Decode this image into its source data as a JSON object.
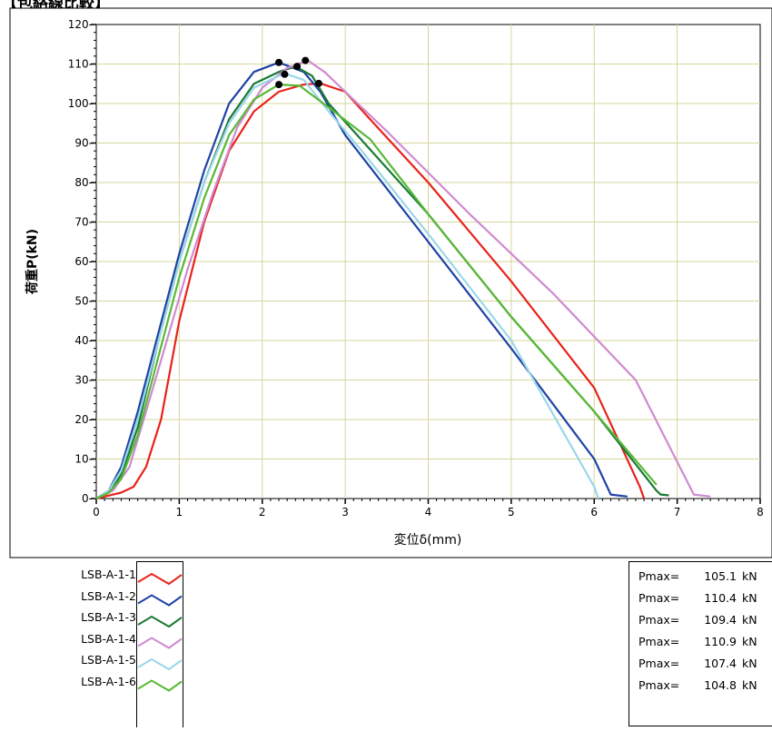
{
  "chart_data": {
    "type": "line",
    "title": "",
    "xlabel": "変位δ(mm)",
    "ylabel": "荷重P(kN)",
    "xlim": [
      0,
      8
    ],
    "ylim": [
      0,
      120
    ],
    "xticks": [
      0,
      1,
      2,
      3,
      4,
      5,
      6,
      7,
      8
    ],
    "yticks": [
      0,
      10,
      20,
      30,
      40,
      50,
      60,
      70,
      80,
      90,
      100,
      110,
      120
    ],
    "grid": true,
    "legend": "bottom-left",
    "series": [
      {
        "name": "LSB-A-1-1",
        "color": "#e8231b",
        "points": [
          [
            0,
            0
          ],
          [
            0.3,
            1.5
          ],
          [
            0.45,
            3
          ],
          [
            0.6,
            8
          ],
          [
            0.78,
            20
          ],
          [
            1.0,
            45
          ],
          [
            1.3,
            70
          ],
          [
            1.6,
            88
          ],
          [
            1.9,
            98
          ],
          [
            2.2,
            103
          ],
          [
            2.5,
            104.8
          ],
          [
            2.7,
            105.1
          ],
          [
            3.0,
            103
          ],
          [
            3.3,
            96
          ],
          [
            4.0,
            80
          ],
          [
            5.0,
            55
          ],
          [
            6.0,
            28
          ],
          [
            6.55,
            3
          ],
          [
            6.6,
            0
          ]
        ]
      },
      {
        "name": "LSB-A-1-2",
        "color": "#1f43a6",
        "points": [
          [
            0,
            0
          ],
          [
            0.15,
            2
          ],
          [
            0.3,
            8
          ],
          [
            0.5,
            22
          ],
          [
            0.75,
            42
          ],
          [
            1.0,
            62
          ],
          [
            1.3,
            83
          ],
          [
            1.6,
            100
          ],
          [
            1.9,
            108
          ],
          [
            2.2,
            110.4
          ],
          [
            2.5,
            108
          ],
          [
            2.7,
            103
          ],
          [
            3.0,
            92
          ],
          [
            4.0,
            65
          ],
          [
            5.0,
            38
          ],
          [
            6.0,
            10
          ],
          [
            6.2,
            1
          ],
          [
            6.4,
            0.5
          ]
        ]
      },
      {
        "name": "LSB-A-1-3",
        "color": "#1a7a36",
        "points": [
          [
            0,
            0
          ],
          [
            0.15,
            1.5
          ],
          [
            0.3,
            6
          ],
          [
            0.5,
            18
          ],
          [
            0.75,
            40
          ],
          [
            1.0,
            60
          ],
          [
            1.3,
            80
          ],
          [
            1.6,
            96
          ],
          [
            1.9,
            105
          ],
          [
            2.2,
            108
          ],
          [
            2.4,
            109.4
          ],
          [
            2.6,
            107
          ],
          [
            2.8,
            100
          ],
          [
            3.1,
            93
          ],
          [
            4.0,
            72
          ],
          [
            5.0,
            46
          ],
          [
            6.0,
            22
          ],
          [
            6.75,
            2
          ],
          [
            6.8,
            1
          ],
          [
            6.9,
            0.8
          ]
        ]
      },
      {
        "name": "LSB-A-1-4",
        "color": "#cf8ad0",
        "points": [
          [
            0,
            0
          ],
          [
            0.2,
            2
          ],
          [
            0.4,
            8
          ],
          [
            0.6,
            22
          ],
          [
            0.85,
            40
          ],
          [
            1.1,
            58
          ],
          [
            1.4,
            77
          ],
          [
            1.7,
            94
          ],
          [
            2.0,
            104
          ],
          [
            2.3,
            109
          ],
          [
            2.55,
            110.9
          ],
          [
            2.75,
            108
          ],
          [
            3.0,
            103
          ],
          [
            3.5,
            93
          ],
          [
            4.5,
            72
          ],
          [
            5.5,
            52
          ],
          [
            6.5,
            30
          ],
          [
            7.2,
            1
          ],
          [
            7.4,
            0.5
          ]
        ]
      },
      {
        "name": "LSB-A-1-5",
        "color": "#9ad7e9",
        "points": [
          [
            0,
            0
          ],
          [
            0.15,
            2
          ],
          [
            0.3,
            7
          ],
          [
            0.5,
            20
          ],
          [
            0.75,
            40
          ],
          [
            1.0,
            60
          ],
          [
            1.3,
            80
          ],
          [
            1.6,
            95
          ],
          [
            1.9,
            104
          ],
          [
            2.2,
            107
          ],
          [
            2.3,
            107.4
          ],
          [
            2.5,
            106
          ],
          [
            2.8,
            98
          ],
          [
            3.2,
            88
          ],
          [
            4.0,
            67
          ],
          [
            5.0,
            40
          ],
          [
            6.0,
            3
          ],
          [
            6.05,
            0
          ]
        ]
      },
      {
        "name": "LSB-A-1-6",
        "color": "#58b935",
        "points": [
          [
            0,
            0
          ],
          [
            0.15,
            1.5
          ],
          [
            0.3,
            5
          ],
          [
            0.5,
            16
          ],
          [
            0.75,
            36
          ],
          [
            1.0,
            56
          ],
          [
            1.3,
            76
          ],
          [
            1.6,
            92
          ],
          [
            1.9,
            101
          ],
          [
            2.2,
            104.8
          ],
          [
            2.45,
            104.5
          ],
          [
            2.8,
            99
          ],
          [
            3.3,
            91
          ],
          [
            4.0,
            72
          ],
          [
            5.0,
            46
          ],
          [
            6.0,
            22
          ],
          [
            6.75,
            3.5
          ]
        ]
      }
    ],
    "peaks": [
      [
        2.68,
        105.1
      ],
      [
        2.2,
        110.4
      ],
      [
        2.42,
        109.4
      ],
      [
        2.52,
        110.9
      ],
      [
        2.27,
        107.4
      ],
      [
        2.2,
        104.8
      ]
    ]
  },
  "pmax": {
    "label": "Pmax=",
    "unit": "kN",
    "values": [
      "105.1",
      "110.4",
      "109.4",
      "110.9",
      "107.4",
      "104.8"
    ]
  },
  "header": {
    "title": "【包絡線比較】"
  }
}
